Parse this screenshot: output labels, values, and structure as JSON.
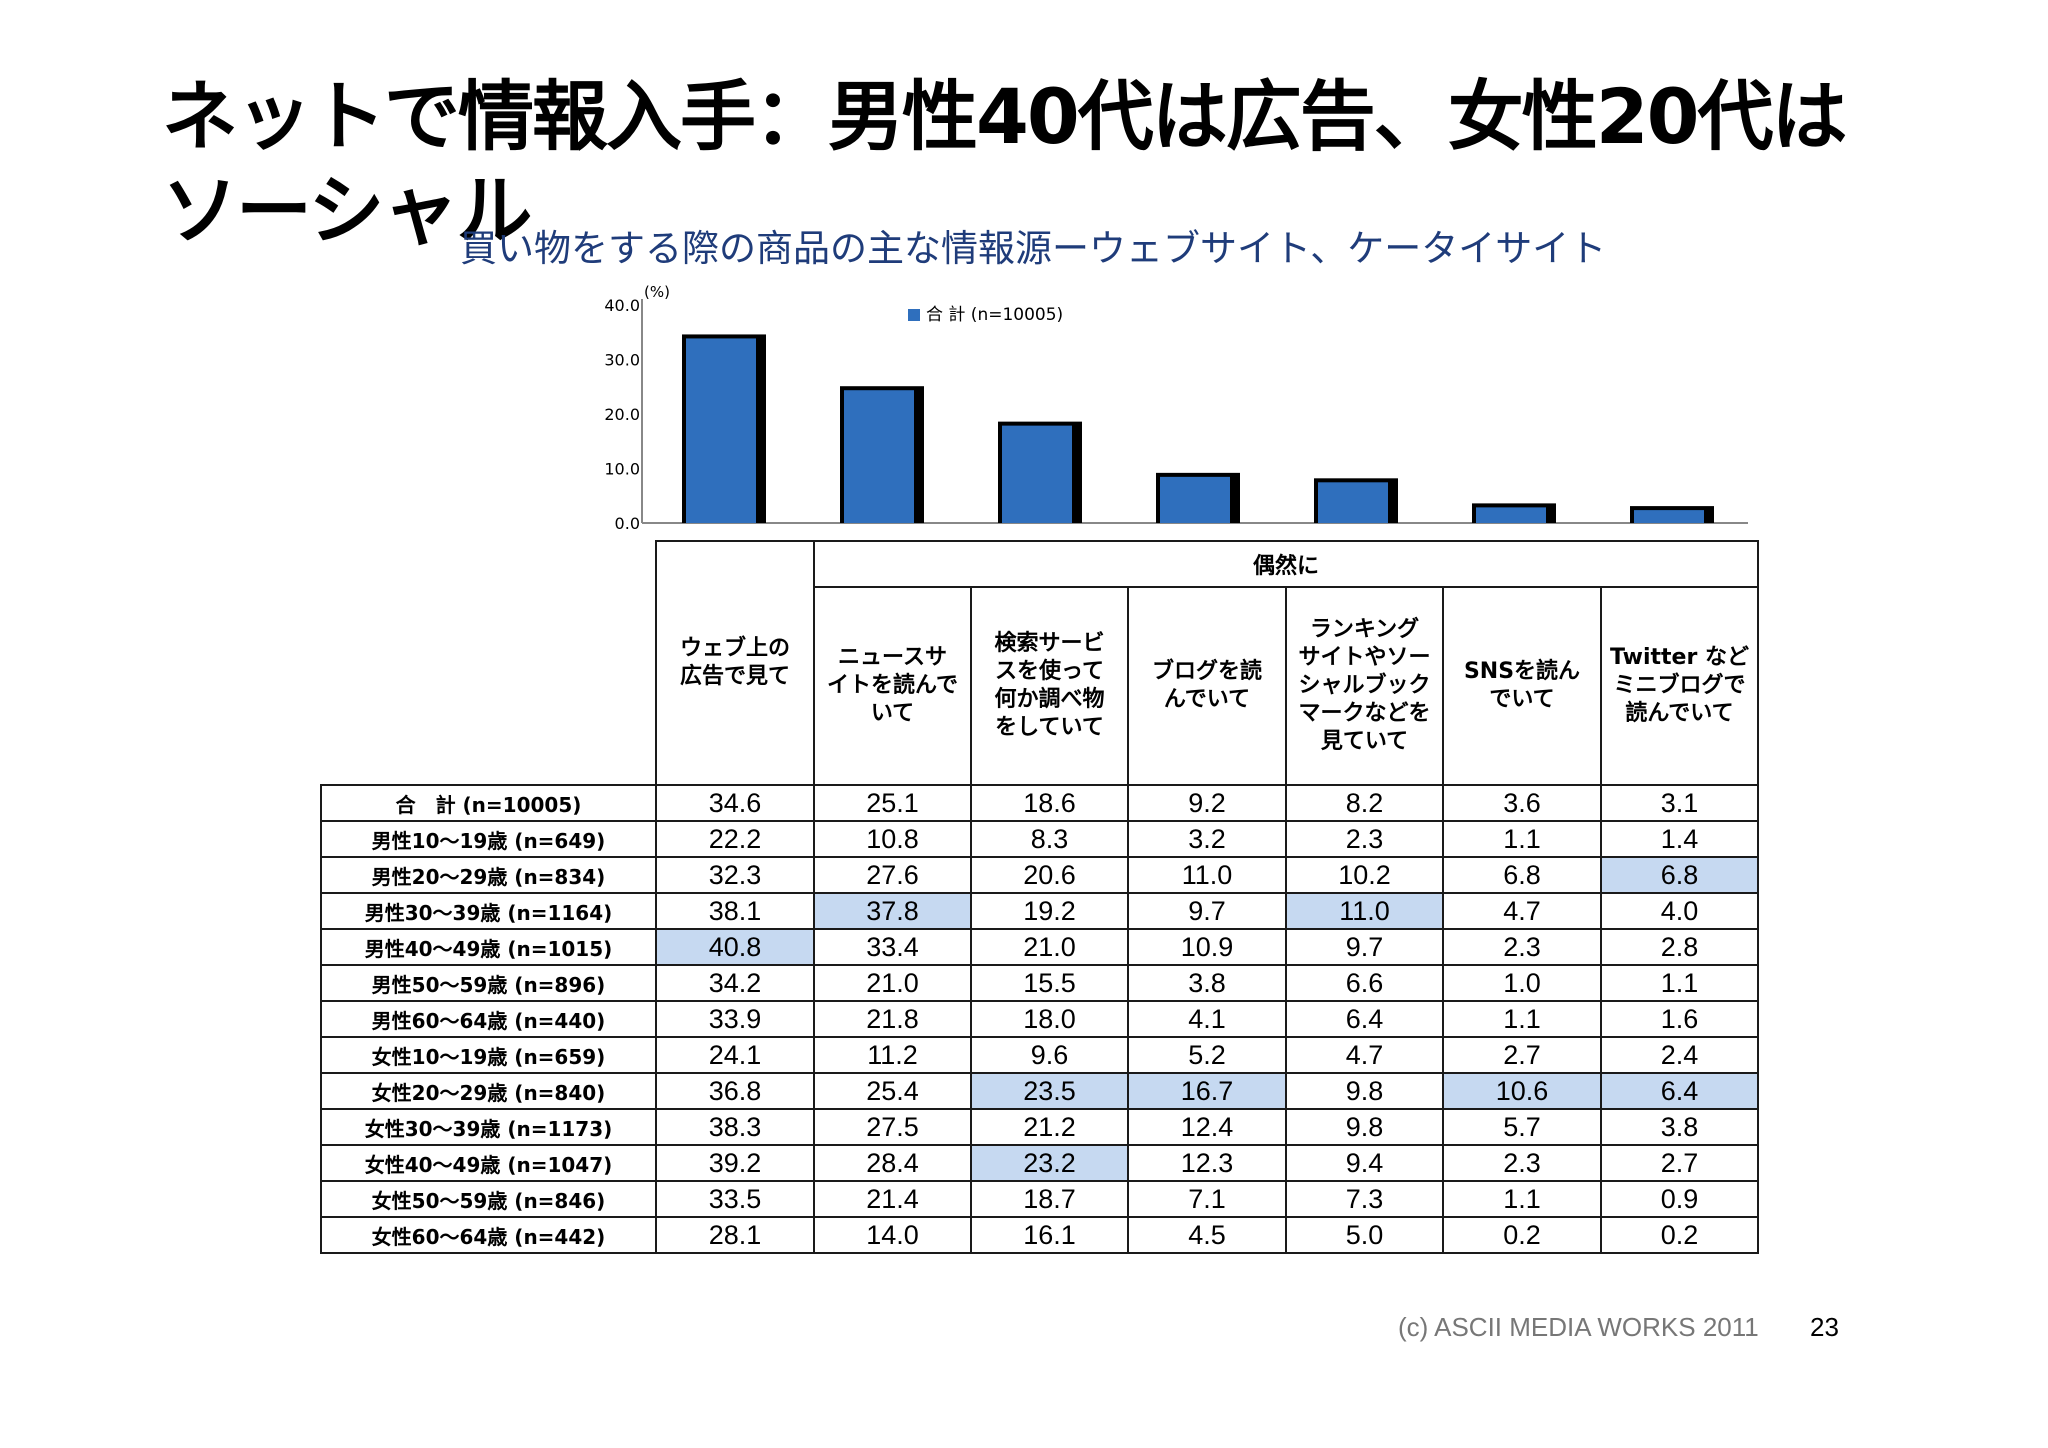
{
  "title": "ネットで情報入手：男性40代は広告、女性20代はソーシャル",
  "chart_data": {
    "type": "bar",
    "title": "買い物をする際の商品の主な情報源ーウェブサイト、ケータイサイト",
    "ylabel": "(%)",
    "ylim": [
      0,
      40
    ],
    "yticks": [
      "40.0",
      "30.0",
      "20.0",
      "10.0",
      "0.0"
    ],
    "categories": [
      "ウェブ上の広告で見て",
      "ニュースサイトを読んでいて",
      "検索サービスを使って何か調べ物をしていて",
      "ブログを読んでいて",
      "ランキングサイトやソーシャルブックマークなどを見ていて",
      "SNSを読んでいて",
      "Twitter などミニブログで読んでいて"
    ],
    "series": [
      {
        "name": "合 計 (n=10005)",
        "values": [
          34.6,
          25.1,
          18.6,
          9.2,
          8.2,
          3.6,
          3.1
        ]
      }
    ],
    "colors": {
      "bar": "#2f6fbd",
      "bar_shadow": "#000000",
      "highlight": "#c6d9f1"
    },
    "legend_position": "top"
  },
  "table": {
    "group_header": "偶然に",
    "columns": [
      [
        "ウェブ上の",
        "広告で見て"
      ],
      [
        "ニュースサ",
        "イトを読んで",
        "いて"
      ],
      [
        "検索サービ",
        "スを使って",
        "何か調べ物",
        "をしていて"
      ],
      [
        "ブログを読",
        "んでいて"
      ],
      [
        "ランキング",
        "サイトやソー",
        "シャルブック",
        "マークなどを",
        "見ていて"
      ],
      [
        "SNSを読ん",
        "でいて"
      ],
      [
        "Twitter など",
        "ミニブログで",
        "読んでいて"
      ]
    ],
    "rows": [
      {
        "label": "合　計 (n=10005)",
        "values": [
          "34.6",
          "25.1",
          "18.6",
          "9.2",
          "8.2",
          "3.6",
          "3.1"
        ],
        "highlight": []
      },
      {
        "label": "男性10～19歳 (n=649)",
        "values": [
          "22.2",
          "10.8",
          "8.3",
          "3.2",
          "2.3",
          "1.1",
          "1.4"
        ],
        "highlight": []
      },
      {
        "label": "男性20～29歳 (n=834)",
        "values": [
          "32.3",
          "27.6",
          "20.6",
          "11.0",
          "10.2",
          "6.8",
          "6.8"
        ],
        "highlight": [
          6
        ]
      },
      {
        "label": "男性30～39歳 (n=1164)",
        "values": [
          "38.1",
          "37.8",
          "19.2",
          "9.7",
          "11.0",
          "4.7",
          "4.0"
        ],
        "highlight": [
          1,
          4
        ]
      },
      {
        "label": "男性40～49歳 (n=1015)",
        "values": [
          "40.8",
          "33.4",
          "21.0",
          "10.9",
          "9.7",
          "2.3",
          "2.8"
        ],
        "highlight": [
          0
        ]
      },
      {
        "label": "男性50～59歳 (n=896)",
        "values": [
          "34.2",
          "21.0",
          "15.5",
          "3.8",
          "6.6",
          "1.0",
          "1.1"
        ],
        "highlight": []
      },
      {
        "label": "男性60～64歳 (n=440)",
        "values": [
          "33.9",
          "21.8",
          "18.0",
          "4.1",
          "6.4",
          "1.1",
          "1.6"
        ],
        "highlight": []
      },
      {
        "label": "女性10～19歳 (n=659)",
        "values": [
          "24.1",
          "11.2",
          "9.6",
          "5.2",
          "4.7",
          "2.7",
          "2.4"
        ],
        "highlight": []
      },
      {
        "label": "女性20～29歳 (n=840)",
        "values": [
          "36.8",
          "25.4",
          "23.5",
          "16.7",
          "9.8",
          "10.6",
          "6.4"
        ],
        "highlight": [
          2,
          3,
          5,
          6
        ]
      },
      {
        "label": "女性30～39歳 (n=1173)",
        "values": [
          "38.3",
          "27.5",
          "21.2",
          "12.4",
          "9.8",
          "5.7",
          "3.8"
        ],
        "highlight": []
      },
      {
        "label": "女性40～49歳 (n=1047)",
        "values": [
          "39.2",
          "28.4",
          "23.2",
          "12.3",
          "9.4",
          "2.3",
          "2.7"
        ],
        "highlight": [
          2
        ]
      },
      {
        "label": "女性50～59歳 (n=846)",
        "values": [
          "33.5",
          "21.4",
          "18.7",
          "7.1",
          "7.3",
          "1.1",
          "0.9"
        ],
        "highlight": []
      },
      {
        "label": "女性60～64歳 (n=442)",
        "values": [
          "28.1",
          "14.0",
          "16.1",
          "4.5",
          "5.0",
          "0.2",
          "0.2"
        ],
        "highlight": []
      }
    ]
  },
  "footer": {
    "copyright": "(c) ASCII MEDIA WORKS 2011",
    "page_number": "23"
  }
}
